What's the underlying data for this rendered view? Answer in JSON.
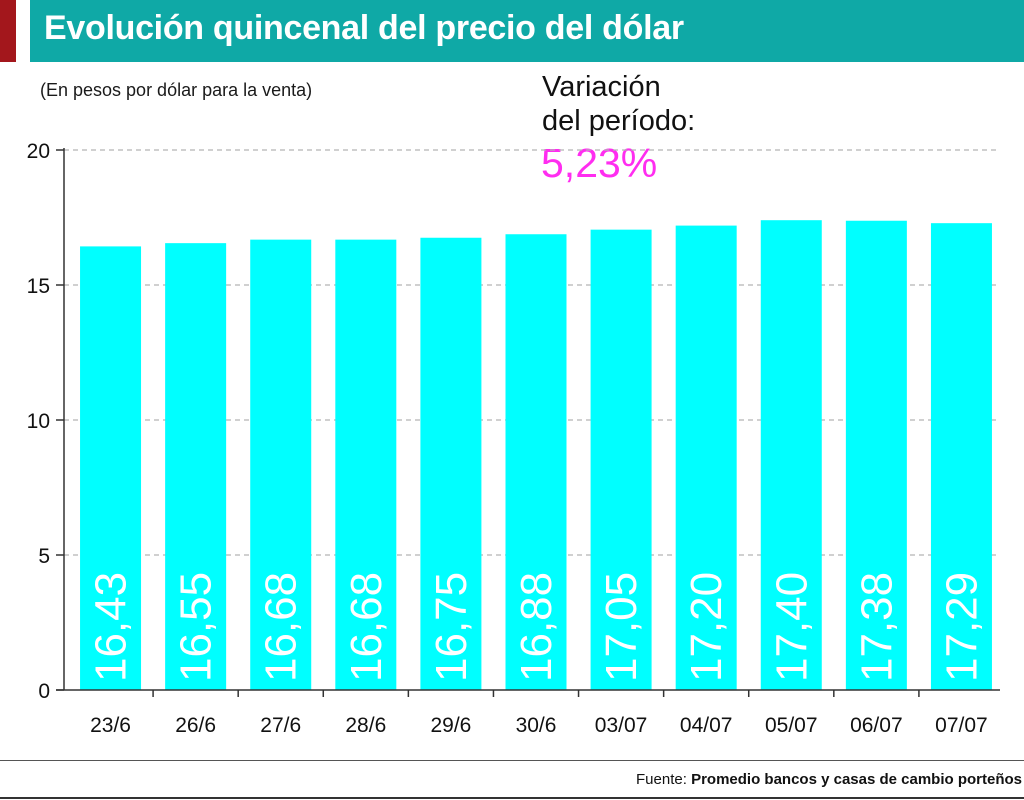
{
  "header": {
    "title": "Evolución quincenal del precio del dólar"
  },
  "subtitle": "(En pesos por dólar para la venta)",
  "variation": {
    "label_line1": "Variación",
    "label_line2": "del período:",
    "value": "5,23%"
  },
  "source": {
    "prefix": "Fuente:",
    "text": "Promedio bancos y casas de cambio porteños"
  },
  "colors": {
    "bar": "#00ffff",
    "title_bg": "#0fa9a6",
    "accent": "#a3171c",
    "variation": "#ff2df0"
  },
  "chart_data": {
    "type": "bar",
    "title": "Evolución quincenal del precio del dólar",
    "ylabel": "(En pesos por dólar para la venta)",
    "xlabel": "",
    "ylim": [
      0,
      20
    ],
    "yticks": [
      0,
      5,
      10,
      15,
      20
    ],
    "grid": true,
    "categories": [
      "23/6",
      "26/6",
      "27/6",
      "28/6",
      "29/6",
      "30/6",
      "03/07",
      "04/07",
      "05/07",
      "06/07",
      "07/07"
    ],
    "values": [
      16.43,
      16.55,
      16.68,
      16.68,
      16.75,
      16.88,
      17.05,
      17.2,
      17.4,
      17.38,
      17.29
    ],
    "value_labels": [
      "16,43",
      "16,55",
      "16,68",
      "16,68",
      "16,75",
      "16,88",
      "17,05",
      "17,20",
      "17,40",
      "17,38",
      "17,29"
    ]
  }
}
